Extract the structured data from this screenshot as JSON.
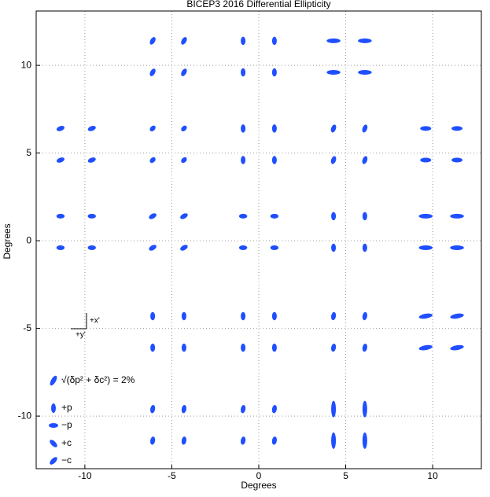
{
  "chart_data": {
    "type": "ellipse-scatter",
    "title": "BICEP3 2016 Differential Ellipticity",
    "xlabel": "Degrees",
    "ylabel": "Degrees",
    "xlim": [
      -12.8,
      12.8
    ],
    "ylim": [
      -13,
      13.1
    ],
    "xticks": [
      -10,
      -5,
      0,
      5,
      10
    ],
    "yticks": [
      -10,
      -5,
      0,
      5,
      10
    ],
    "grid": true,
    "color": "#1f4fff",
    "legend": {
      "scale_label": "√(δp² + δc²) = 2%",
      "scale_value": 2,
      "entries": [
        "+p",
        "−p",
        "+c",
        "−c"
      ],
      "x_axis_label": "+x'",
      "y_axis_label": "+y'"
    },
    "x": [
      -6.1,
      -4.3,
      -6.1,
      -4.3,
      -0.9,
      0.9,
      -0.9,
      0.9,
      4.3,
      6.1,
      4.3,
      6.1,
      -11.4,
      -9.6,
      -11.4,
      -9.6,
      -6.1,
      -4.3,
      -6.1,
      -4.3,
      -0.9,
      0.9,
      -0.9,
      0.9,
      4.3,
      6.1,
      4.3,
      6.1,
      9.6,
      11.4,
      9.6,
      11.4,
      -11.4,
      -9.6,
      -11.4,
      -9.6,
      -6.1,
      -4.3,
      -6.1,
      -4.3,
      -0.9,
      0.9,
      -0.9,
      0.9,
      4.3,
      6.1,
      4.3,
      6.1,
      9.6,
      11.4,
      9.6,
      11.4,
      -6.1,
      -4.3,
      -6.1,
      -4.3,
      -0.9,
      0.9,
      -0.9,
      0.9,
      4.3,
      6.1,
      4.3,
      6.1,
      9.6,
      11.4,
      9.6,
      11.4,
      -6.1,
      -4.3,
      -6.1,
      -4.3,
      -0.9,
      0.9,
      -0.9,
      0.9,
      4.3,
      6.1,
      4.3,
      6.1
    ],
    "y": [
      11.4,
      11.4,
      9.6,
      9.6,
      11.4,
      11.4,
      9.6,
      9.6,
      11.4,
      11.4,
      9.6,
      9.6,
      6.4,
      6.4,
      4.6,
      4.6,
      6.4,
      6.4,
      4.6,
      4.6,
      6.4,
      6.4,
      4.6,
      4.6,
      6.4,
      6.4,
      4.6,
      4.6,
      6.4,
      6.4,
      4.6,
      4.6,
      1.4,
      1.4,
      -0.4,
      -0.4,
      1.4,
      1.4,
      -0.4,
      -0.4,
      1.4,
      1.4,
      -0.4,
      -0.4,
      1.4,
      1.4,
      -0.4,
      -0.4,
      1.4,
      1.4,
      -0.4,
      -0.4,
      -4.3,
      -4.3,
      -6.1,
      -6.1,
      -4.3,
      -4.3,
      -6.1,
      -6.1,
      -4.3,
      -4.3,
      -6.1,
      -6.1,
      -4.3,
      -4.3,
      -6.1,
      -6.1,
      -9.6,
      -9.6,
      -11.4,
      -11.4,
      -9.6,
      -9.6,
      -11.4,
      -11.4,
      -9.6,
      -9.6,
      -11.4,
      -11.4
    ],
    "angle": [
      60,
      60,
      60,
      60,
      90,
      90,
      90,
      90,
      0,
      0,
      0,
      0,
      20,
      20,
      20,
      20,
      45,
      45,
      45,
      45,
      90,
      90,
      90,
      90,
      70,
      70,
      70,
      70,
      0,
      0,
      0,
      0,
      0,
      0,
      0,
      0,
      30,
      30,
      30,
      30,
      0,
      0,
      0,
      0,
      90,
      90,
      90,
      90,
      0,
      0,
      0,
      0,
      90,
      90,
      90,
      90,
      90,
      90,
      90,
      90,
      80,
      80,
      80,
      80,
      10,
      10,
      10,
      10,
      80,
      80,
      80,
      80,
      80,
      80,
      80,
      80,
      90,
      90,
      90,
      90
    ],
    "e": [
      1.5,
      1.5,
      1.5,
      1.5,
      1.5,
      1.5,
      1.5,
      1.5,
      2.5,
      2.5,
      2.5,
      2.5,
      1.5,
      1.5,
      1.5,
      1.5,
      1.2,
      1.2,
      1.2,
      1.2,
      1.5,
      1.5,
      1.5,
      1.5,
      1.5,
      1.5,
      1.5,
      1.5,
      2,
      2,
      2,
      2,
      1.5,
      1.5,
      1.5,
      1.5,
      1.5,
      1.5,
      1.5,
      1.5,
      1.5,
      1.5,
      1.5,
      1.5,
      1.5,
      1.5,
      1.5,
      1.5,
      2.5,
      2.5,
      2.5,
      2.5,
      1.5,
      1.5,
      1.5,
      1.5,
      1.5,
      1.5,
      1.5,
      1.5,
      1.5,
      1.5,
      1.5,
      1.5,
      2.5,
      2.5,
      2.5,
      2.5,
      1.5,
      1.5,
      1.5,
      1.5,
      1.5,
      1.5,
      1.5,
      1.5,
      3,
      3,
      3,
      3
    ]
  }
}
